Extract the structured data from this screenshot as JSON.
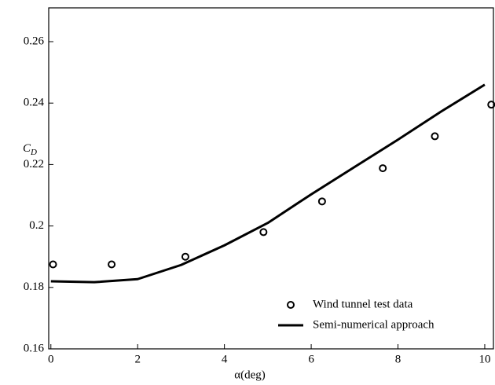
{
  "chart_data": {
    "type": "line",
    "xlabel": "α(deg)",
    "ylabel": {
      "text": "C",
      "subscript": "D"
    },
    "xlim": [
      -0.05,
      10.2
    ],
    "xticks": [
      0,
      2,
      4,
      6,
      8,
      10
    ],
    "ylim": [
      0.16,
      0.271
    ],
    "yticks": [
      0.16,
      0.18,
      0.2,
      0.22,
      0.24,
      0.26
    ],
    "legend": "lower right",
    "series": [
      {
        "name": "Wind tunnel test data",
        "type": "scatter",
        "color": "#000000",
        "x": [
          0.05,
          1.4,
          3.1,
          4.9,
          6.25,
          7.65,
          8.85,
          10.15
        ],
        "values": [
          0.1875,
          0.1875,
          0.19,
          0.198,
          0.208,
          0.2188,
          0.2292,
          0.2395
        ]
      },
      {
        "name": "Semi-numerical approach",
        "type": "line",
        "color": "#000000",
        "x": [
          0,
          1,
          2,
          3,
          4,
          5,
          6,
          7,
          8,
          9,
          10
        ],
        "values": [
          0.182,
          0.1817,
          0.1827,
          0.1873,
          0.1937,
          0.201,
          0.2103,
          0.2192,
          0.2281,
          0.2373,
          0.246
        ]
      }
    ]
  }
}
